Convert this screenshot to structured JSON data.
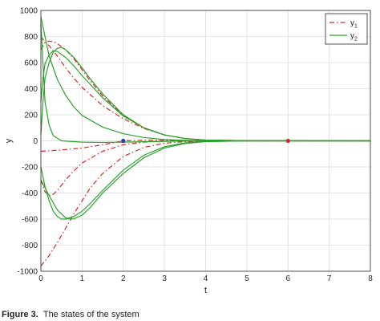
{
  "chart_data": {
    "type": "line",
    "xlabel": "t",
    "ylabel": "y",
    "xlim": [
      0,
      8
    ],
    "ylim": [
      -1000,
      1000
    ],
    "xticks": [
      0,
      1,
      2,
      3,
      4,
      5,
      6,
      7,
      8
    ],
    "yticks": [
      -1000,
      -800,
      -600,
      -400,
      -200,
      0,
      200,
      400,
      600,
      800,
      1000
    ],
    "grid": true,
    "legend_position": "top-right",
    "legend": [
      {
        "label": "y",
        "sub": "1",
        "color": "#d62728",
        "dash": "dash-dot"
      },
      {
        "label": "y",
        "sub": "2",
        "color": "#2ca02c",
        "dash": "solid"
      }
    ],
    "series": [
      {
        "group": "y1",
        "color": "#d62728",
        "dash": "dash-dot",
        "points": [
          [
            0,
            700
          ],
          [
            0.1,
            755
          ],
          [
            0.2,
            765
          ],
          [
            0.3,
            760
          ],
          [
            0.4,
            745
          ],
          [
            0.6,
            700
          ],
          [
            0.8,
            630
          ],
          [
            1,
            545
          ],
          [
            1.2,
            460
          ],
          [
            1.5,
            345
          ],
          [
            2,
            195
          ],
          [
            2.5,
            100
          ],
          [
            3,
            45
          ],
          [
            3.5,
            18
          ],
          [
            4,
            6
          ],
          [
            5,
            1
          ],
          [
            8,
            0
          ]
        ]
      },
      {
        "group": "y1",
        "color": "#d62728",
        "dash": "dash-dot",
        "points": [
          [
            0,
            800
          ],
          [
            0.1,
            760
          ],
          [
            0.2,
            730
          ],
          [
            0.4,
            650
          ],
          [
            0.6,
            560
          ],
          [
            0.8,
            480
          ],
          [
            1,
            410
          ],
          [
            1.5,
            270
          ],
          [
            2,
            170
          ],
          [
            2.5,
            95
          ],
          [
            3,
            45
          ],
          [
            3.5,
            18
          ],
          [
            4,
            6
          ],
          [
            5,
            1
          ],
          [
            8,
            0
          ]
        ]
      },
      {
        "group": "y1",
        "color": "#d62728",
        "dash": "dash-dot",
        "points": [
          [
            0,
            -300
          ],
          [
            0.1,
            -390
          ],
          [
            0.2,
            -420
          ],
          [
            0.3,
            -410
          ],
          [
            0.4,
            -380
          ],
          [
            0.6,
            -300
          ],
          [
            0.8,
            -230
          ],
          [
            1,
            -170
          ],
          [
            1.5,
            -80
          ],
          [
            2,
            -30
          ],
          [
            2.5,
            -10
          ],
          [
            3,
            -3
          ],
          [
            4,
            0
          ],
          [
            8,
            0
          ]
        ]
      },
      {
        "group": "y1",
        "color": "#d62728",
        "dash": "dash-dot",
        "points": [
          [
            0,
            -960
          ],
          [
            0.2,
            -880
          ],
          [
            0.4,
            -780
          ],
          [
            0.6,
            -670
          ],
          [
            0.8,
            -560
          ],
          [
            1,
            -460
          ],
          [
            1.2,
            -360
          ],
          [
            1.5,
            -250
          ],
          [
            2,
            -120
          ],
          [
            2.5,
            -50
          ],
          [
            3,
            -18
          ],
          [
            3.5,
            -6
          ],
          [
            4,
            -2
          ],
          [
            5,
            0
          ],
          [
            8,
            0
          ]
        ]
      },
      {
        "group": "y1",
        "color": "#d62728",
        "dash": "dash-dot",
        "points": [
          [
            0,
            -80
          ],
          [
            0.5,
            -70
          ],
          [
            1,
            -55
          ],
          [
            1.5,
            -30
          ],
          [
            2,
            0
          ],
          [
            2.5,
            5
          ],
          [
            3,
            3
          ],
          [
            4,
            0
          ],
          [
            8,
            0
          ]
        ]
      },
      {
        "group": "y2",
        "color": "#2ca02c",
        "dash": "solid",
        "points": [
          [
            0,
            50
          ],
          [
            0.05,
            300
          ],
          [
            0.1,
            480
          ],
          [
            0.2,
            600
          ],
          [
            0.3,
            680
          ],
          [
            0.4,
            710
          ],
          [
            0.5,
            715
          ],
          [
            0.6,
            700
          ],
          [
            0.8,
            640
          ],
          [
            1,
            560
          ],
          [
            1.2,
            475
          ],
          [
            1.5,
            360
          ],
          [
            2,
            200
          ],
          [
            2.5,
            100
          ],
          [
            3,
            45
          ],
          [
            3.5,
            18
          ],
          [
            4,
            6
          ],
          [
            5,
            1
          ],
          [
            8,
            0
          ]
        ]
      },
      {
        "group": "y2",
        "color": "#2ca02c",
        "dash": "solid",
        "points": [
          [
            0,
            300
          ],
          [
            0.05,
            480
          ],
          [
            0.1,
            590
          ],
          [
            0.2,
            660
          ],
          [
            0.3,
            690
          ],
          [
            0.4,
            685
          ],
          [
            0.6,
            640
          ],
          [
            0.8,
            575
          ],
          [
            1,
            500
          ],
          [
            1.5,
            330
          ],
          [
            2,
            190
          ],
          [
            2.5,
            100
          ],
          [
            3,
            45
          ],
          [
            3.5,
            18
          ],
          [
            4,
            6
          ],
          [
            5,
            1
          ],
          [
            8,
            0
          ]
        ]
      },
      {
        "group": "y2",
        "color": "#2ca02c",
        "dash": "solid",
        "points": [
          [
            0,
            950
          ],
          [
            0.1,
            800
          ],
          [
            0.2,
            650
          ],
          [
            0.4,
            470
          ],
          [
            0.6,
            350
          ],
          [
            0.8,
            260
          ],
          [
            1,
            195
          ],
          [
            1.5,
            105
          ],
          [
            2,
            55
          ],
          [
            2.5,
            25
          ],
          [
            3,
            10
          ],
          [
            3.5,
            4
          ],
          [
            4,
            1
          ],
          [
            5,
            0
          ],
          [
            8,
            0
          ]
        ]
      },
      {
        "group": "y2",
        "color": "#2ca02c",
        "dash": "solid",
        "points": [
          [
            0,
            -200
          ],
          [
            0.1,
            -350
          ],
          [
            0.2,
            -460
          ],
          [
            0.3,
            -540
          ],
          [
            0.4,
            -580
          ],
          [
            0.5,
            -600
          ],
          [
            0.6,
            -600
          ],
          [
            0.8,
            -580
          ],
          [
            1,
            -540
          ],
          [
            1.2,
            -480
          ],
          [
            1.5,
            -380
          ],
          [
            2,
            -225
          ],
          [
            2.5,
            -110
          ],
          [
            3,
            -45
          ],
          [
            3.5,
            -15
          ],
          [
            4,
            -5
          ],
          [
            5,
            0
          ],
          [
            8,
            0
          ]
        ]
      },
      {
        "group": "y2",
        "color": "#2ca02c",
        "dash": "solid",
        "points": [
          [
            0,
            -300
          ],
          [
            0.2,
            -420
          ],
          [
            0.4,
            -530
          ],
          [
            0.6,
            -590
          ],
          [
            0.7,
            -600
          ],
          [
            0.8,
            -598
          ],
          [
            1,
            -570
          ],
          [
            1.2,
            -510
          ],
          [
            1.5,
            -400
          ],
          [
            2,
            -250
          ],
          [
            2.5,
            -130
          ],
          [
            3,
            -55
          ],
          [
            3.5,
            -20
          ],
          [
            4,
            -6
          ],
          [
            5,
            0
          ],
          [
            8,
            0
          ]
        ]
      },
      {
        "group": "y2",
        "color": "#2ca02c",
        "dash": "solid",
        "points": [
          [
            0,
            900
          ],
          [
            0.05,
            600
          ],
          [
            0.1,
            300
          ],
          [
            0.2,
            120
          ],
          [
            0.3,
            40
          ],
          [
            0.5,
            0
          ],
          [
            1,
            -10
          ],
          [
            1.5,
            -12
          ],
          [
            2,
            -10
          ],
          [
            3,
            -4
          ],
          [
            4,
            0
          ],
          [
            8,
            0
          ]
        ]
      }
    ],
    "markers": [
      {
        "x": 2,
        "y": 0,
        "color": "#1f3fbf"
      },
      {
        "x": 6,
        "y": 0,
        "color": "#d62728"
      }
    ]
  },
  "caption": {
    "label": "Figure 3.",
    "text": "The states of the system"
  }
}
